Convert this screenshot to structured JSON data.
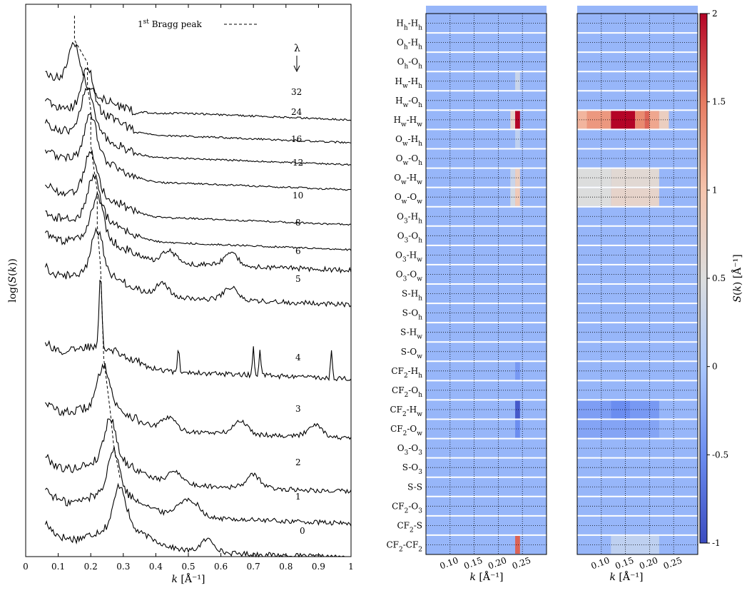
{
  "chart_data": [
    {
      "type": "line",
      "xlabel": "k [Å⁻¹]",
      "ylabel": "log(S(k))",
      "xlim": [
        0,
        1
      ],
      "x_ticks": [
        "0",
        "0.1",
        "0.2",
        "0.3",
        "0.4",
        "0.5",
        "0.6",
        "0.7",
        "0.8",
        "0.9",
        "1"
      ],
      "legend": {
        "label": "1st Bragg peak",
        "placement": "top"
      },
      "lambda_label": "λ",
      "series": [
        {
          "name": "0",
          "peak_k": 0.29,
          "secondary": [
            0.56
          ]
        },
        {
          "name": "1",
          "peak_k": 0.27,
          "secondary": [
            0.48,
            0.52
          ]
        },
        {
          "name": "2",
          "peak_k": 0.26,
          "secondary": [
            0.46,
            0.7
          ]
        },
        {
          "name": "3",
          "peak_k": 0.24,
          "secondary": [
            0.44,
            0.66,
            0.89
          ]
        },
        {
          "name": "4",
          "peak_k": 0.23,
          "secondary": [
            0.47,
            0.7,
            0.72,
            0.94
          ]
        },
        {
          "name": "5",
          "peak_k": 0.22,
          "secondary": [
            0.42,
            0.63
          ]
        },
        {
          "name": "6",
          "peak_k": 0.22,
          "secondary": [
            0.44,
            0.63
          ]
        },
        {
          "name": "8",
          "peak_k": 0.21,
          "secondary": []
        },
        {
          "name": "10",
          "peak_k": 0.2,
          "secondary": []
        },
        {
          "name": "12",
          "peak_k": 0.2,
          "secondary": []
        },
        {
          "name": "16",
          "peak_k": 0.19,
          "secondary": []
        },
        {
          "name": "24",
          "peak_k": 0.19,
          "secondary": []
        },
        {
          "name": "32",
          "peak_k": 0.15,
          "secondary": []
        }
      ]
    },
    {
      "type": "heatmap",
      "xlabel": "k [Å⁻¹]",
      "x_ticks": [
        "0.10",
        "0.15",
        "0.20",
        "0.25"
      ],
      "xlim": [
        0.05,
        0.3
      ],
      "rows": [
        "H_h-H_h",
        "O_h-H_h",
        "O_h-O_h",
        "H_w-H_h",
        "H_w-O_h",
        "H_w-H_w",
        "O_w-H_h",
        "O_w-O_h",
        "O_w-H_w",
        "O_w-O_w",
        "O_3-H_h",
        "O_3-O_h",
        "O_3-H_w",
        "O_3-O_w",
        "S-H_h",
        "S-O_h",
        "S-H_w",
        "S-O_w",
        "CF_2-H_h",
        "CF_2-O_h",
        "CF_2-H_w",
        "CF_2-O_w",
        "O_3-O_3",
        "S-O_3",
        "S-S",
        "CF_2-O_3",
        "CF_2-S",
        "CF_2-CF_2"
      ],
      "background_value": -0.15,
      "cells": [
        {
          "row": "H_w-H_h",
          "k": [
            0.235,
            0.245
          ],
          "value": 0.3
        },
        {
          "row": "H_w-H_w",
          "k": [
            0.225,
            0.235
          ],
          "value": 0.7
        },
        {
          "row": "H_w-H_w",
          "k": [
            0.235,
            0.245
          ],
          "value": 2.0
        },
        {
          "row": "O_w-H_h",
          "k": [
            0.235,
            0.245
          ],
          "value": 0.2
        },
        {
          "row": "O_w-H_w",
          "k": [
            0.225,
            0.235
          ],
          "value": 0.3
        },
        {
          "row": "O_w-H_w",
          "k": [
            0.235,
            0.245
          ],
          "value": 0.8
        },
        {
          "row": "O_w-O_w",
          "k": [
            0.225,
            0.235
          ],
          "value": 0.4
        },
        {
          "row": "O_w-O_w",
          "k": [
            0.235,
            0.245
          ],
          "value": 0.9
        },
        {
          "row": "CF_2-H_h",
          "k": [
            0.235,
            0.245
          ],
          "value": -0.4
        },
        {
          "row": "CF_2-H_w",
          "k": [
            0.235,
            0.245
          ],
          "value": -0.9
        },
        {
          "row": "CF_2-O_w",
          "k": [
            0.235,
            0.245
          ],
          "value": -0.5
        },
        {
          "row": "CF_2-CF_2",
          "k": [
            0.235,
            0.245
          ],
          "value": 1.6
        }
      ]
    },
    {
      "type": "heatmap",
      "xlabel": "k [Å⁻¹]",
      "x_ticks": [
        "0.10",
        "0.15",
        "0.20",
        "0.25"
      ],
      "xlim": [
        0.05,
        0.3
      ],
      "background_value": -0.15,
      "colorbar": {
        "label": "S(k) [Å⁻¹]",
        "range": [
          -1,
          2
        ],
        "ticks": [
          "2",
          "1.5",
          "1",
          "0.5",
          "0",
          "-0.5",
          "-1"
        ]
      },
      "cells": [
        {
          "row": "H_w-H_w",
          "k": [
            0.05,
            0.07
          ],
          "value": 1.1
        },
        {
          "row": "H_w-H_w",
          "k": [
            0.07,
            0.12
          ],
          "value": 1.3
        },
        {
          "row": "H_w-H_w",
          "k": [
            0.12,
            0.17
          ],
          "value": 2.0
        },
        {
          "row": "H_w-H_w",
          "k": [
            0.17,
            0.19
          ],
          "value": 1.4
        },
        {
          "row": "H_w-H_w",
          "k": [
            0.19,
            0.2
          ],
          "value": 1.6
        },
        {
          "row": "H_w-H_w",
          "k": [
            0.2,
            0.22
          ],
          "value": 1.2
        },
        {
          "row": "H_w-H_w",
          "k": [
            0.22,
            0.24
          ],
          "value": 0.8
        },
        {
          "row": "O_w-H_w",
          "k": [
            0.05,
            0.12
          ],
          "value": 0.5
        },
        {
          "row": "O_w-H_w",
          "k": [
            0.12,
            0.22
          ],
          "value": 0.6
        },
        {
          "row": "O_w-O_w",
          "k": [
            0.05,
            0.12
          ],
          "value": 0.5
        },
        {
          "row": "O_w-O_w",
          "k": [
            0.12,
            0.22
          ],
          "value": 0.7
        },
        {
          "row": "CF_2-H_w",
          "k": [
            0.05,
            0.12
          ],
          "value": -0.35
        },
        {
          "row": "CF_2-H_w",
          "k": [
            0.12,
            0.16
          ],
          "value": -0.5
        },
        {
          "row": "CF_2-H_w",
          "k": [
            0.16,
            0.22
          ],
          "value": -0.4
        },
        {
          "row": "CF_2-O_w",
          "k": [
            0.05,
            0.22
          ],
          "value": -0.3
        },
        {
          "row": "CF_2-CF_2",
          "k": [
            0.12,
            0.22
          ],
          "value": 0.2
        }
      ]
    }
  ]
}
